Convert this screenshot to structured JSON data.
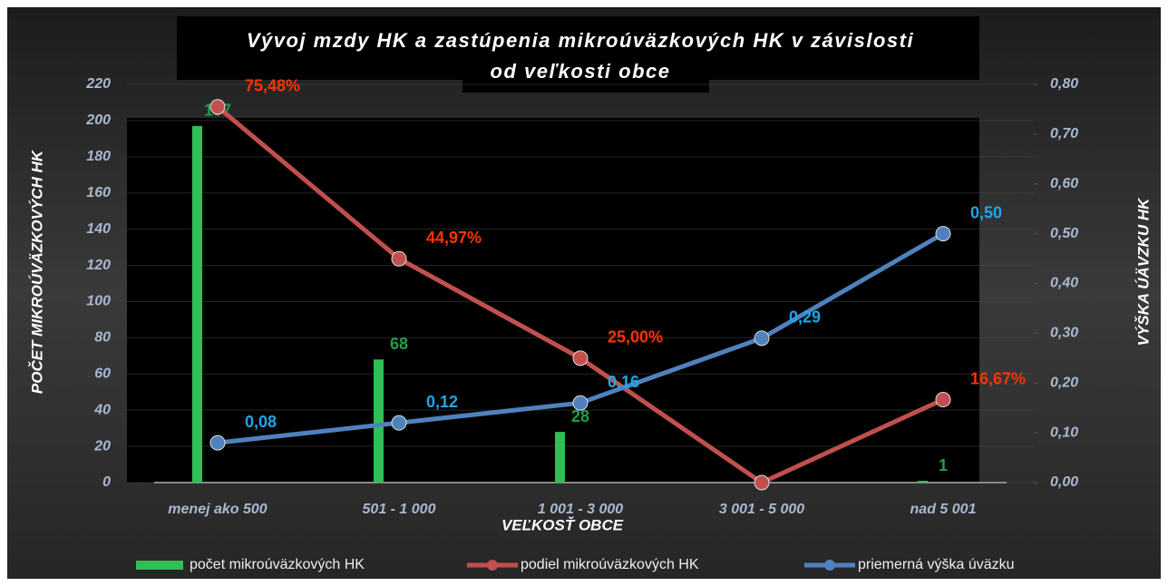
{
  "chart_data": {
    "type": "bar",
    "title": [
      "Vývoj mzdy HK a zastúpenia mikroúväzkových HK v závislosti",
      "od veľkosti obce"
    ],
    "x_label": "VEĽKOSŤ OBCE",
    "y_label": "POČET MIKROÚVÄZKOVÝCH HK",
    "y2_label": "VÝŠKA ÚÄVZKU HK",
    "categories": [
      "menej ako 500",
      "501 - 1 000",
      "1 001 - 3 000",
      "3 001 - 5 000",
      "nad 5 001"
    ],
    "series": [
      {
        "name": "počet mikroúväzkových HK",
        "type": "bar",
        "color": "#2fbf55",
        "label_color": "#1f9e48",
        "values": [
          197,
          68,
          28,
          null,
          1
        ]
      },
      {
        "name": "podiel mikroúväzkových HK",
        "type": "line",
        "axis": "y2",
        "color": "#c0504d",
        "label_color": "#ff3300",
        "values": [
          0.7548,
          0.4497,
          0.25,
          0,
          0.1667
        ],
        "value_labels": [
          "75,48%",
          "44,97%",
          "25,00%",
          null,
          "16,67%"
        ]
      },
      {
        "name": "priemerná výška úväzku",
        "type": "line",
        "axis": "y2",
        "color": "#4f81bd",
        "label_color": "#1ea7e8",
        "values": [
          0.08,
          0.12,
          0.16,
          0.29,
          0.5
        ],
        "value_labels": [
          "0,08",
          "0,12",
          "0,16",
          "0,29",
          "0,50"
        ]
      }
    ],
    "ylim": [
      0,
      220
    ],
    "yticks": [
      0,
      20,
      40,
      60,
      80,
      100,
      120,
      140,
      160,
      180,
      200,
      220
    ],
    "y2lim": [
      0,
      0.8
    ],
    "y2ticks": [
      {
        "value": 0,
        "label": "0,00"
      },
      {
        "value": 0.1,
        "label": "0,10"
      },
      {
        "value": 0.2,
        "label": "0,20"
      },
      {
        "value": 0.3,
        "label": "0,30"
      },
      {
        "value": 0.4,
        "label": "0,40"
      },
      {
        "value": 0.5,
        "label": "0,50"
      },
      {
        "value": 0.6,
        "label": "0,60"
      },
      {
        "value": 0.7,
        "label": "0,70"
      },
      {
        "value": 0.8,
        "label": "0,80"
      }
    ],
    "grid": true,
    "legend": "bottom"
  }
}
